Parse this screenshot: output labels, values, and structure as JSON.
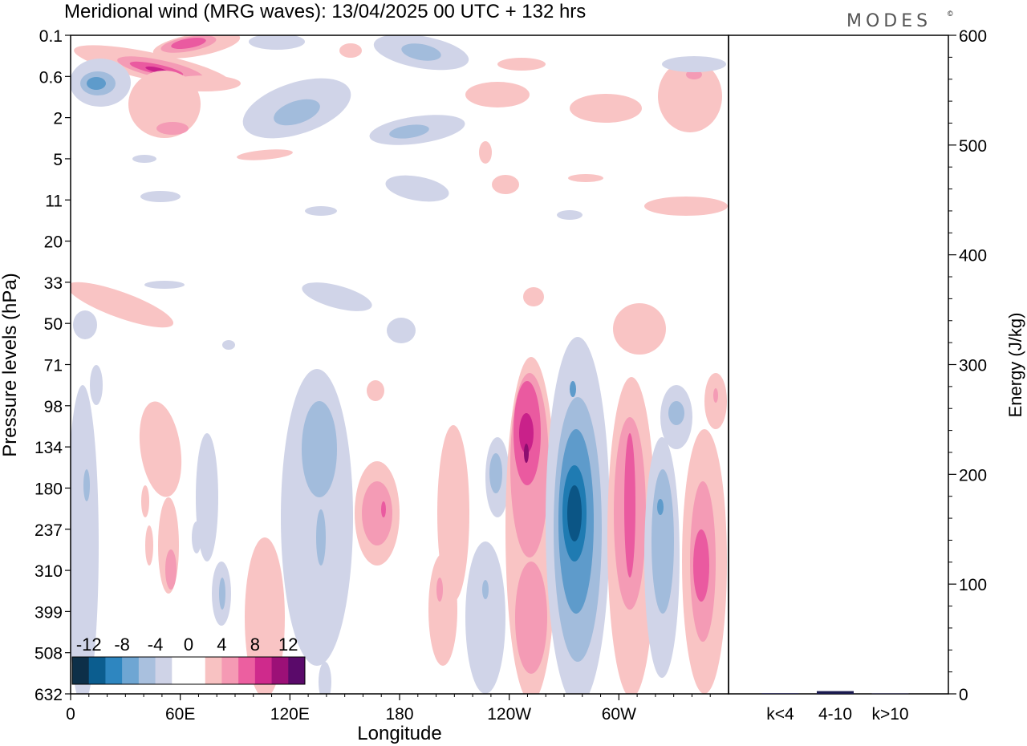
{
  "chart_data": [
    {
      "type": "heatmap",
      "title": "Meridional wind (MRG waves):  13/04/2025  00 UTC  + 132 hrs",
      "brand": "MODES",
      "brand_mark": "©",
      "xlabel": "Longitude",
      "ylabel": "Pressure levels (hPa)",
      "x_ticks": [
        "0",
        "60E",
        "120E",
        "180",
        "120W",
        "60W"
      ],
      "x_tick_degrees": [
        0,
        60,
        120,
        180,
        240,
        300
      ],
      "xlim": [
        0,
        360
      ],
      "y_ticks": [
        "0.1",
        "0.6",
        "2",
        "5",
        "11",
        "20",
        "33",
        "50",
        "71",
        "98",
        "134",
        "180",
        "237",
        "310",
        "399",
        "508",
        "632"
      ],
      "colorbar": {
        "labels": [
          "-12",
          "-8",
          "-4",
          "0",
          "4",
          "8",
          "12"
        ],
        "colors": [
          "#0d2f48",
          "#0b5d8f",
          "#2e86c0",
          "#6fa6d3",
          "#a9c0de",
          "#cfd3e7",
          "#ffffff",
          "#ffffff",
          "#f8c2c2",
          "#f59ab4",
          "#ec5fa0",
          "#cf2a8c",
          "#9c1077",
          "#5a0a6a"
        ]
      },
      "colors": {
        "neg1": "#d0d4e8",
        "neg2": "#a2bcdc",
        "neg3": "#5e9bcb",
        "neg4": "#1f7bb2",
        "neg5": "#0b5585",
        "pos1": "#f9c4c4",
        "pos2": "#f49bb5",
        "pos3": "#ea5aa0",
        "pos4": "#c9218a",
        "pos5": "#8c0e70"
      },
      "features": [
        {
          "lon": 120,
          "lev": 0.0,
          "sign": -1,
          "amp": 3
        },
        {
          "lon": 150,
          "lev": 0.5,
          "sign": -1,
          "amp": 4
        },
        {
          "lon": 165,
          "lev": 1.9,
          "sign": 1,
          "amp": 1
        },
        {
          "lon": 248,
          "lev": 2.5,
          "sign": -1,
          "amp": 2
        },
        {
          "lon": 262,
          "lev": 2.8,
          "sign": -1,
          "amp": 1
        }
      ]
    },
    {
      "type": "bar",
      "ylabel": "Energy (J/kg)",
      "ylim": [
        0,
        600
      ],
      "y_ticks": [
        0,
        100,
        200,
        300,
        400,
        500,
        600
      ],
      "categories": [
        "k<4",
        "4-10",
        "k>10"
      ],
      "values": [
        0.5,
        2.5,
        0.3
      ],
      "bar_color": "#1a1a4e"
    }
  ]
}
